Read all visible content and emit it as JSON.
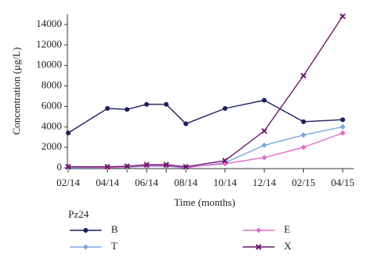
{
  "chart_data": {
    "type": "line",
    "x_label": "Time (months)",
    "y_label": "Concentration (μg/L)",
    "categories": [
      "02/14",
      "04/14",
      null,
      "06/14",
      null,
      "08/14",
      "10/14",
      "12/14",
      "02/15",
      "04/15"
    ],
    "series": [
      {
        "name": "B",
        "color": "#1c1f5c",
        "marker": "circle",
        "values": [
          3400,
          5800,
          5700,
          6200,
          6200,
          4300,
          5800,
          6600,
          4500,
          4700
        ]
      },
      {
        "name": "T",
        "color": "#7ba7e0",
        "marker": "diamond",
        "values": [
          0,
          0,
          50,
          150,
          150,
          0,
          500,
          2200,
          3200,
          4000
        ]
      },
      {
        "name": "E",
        "color": "#e06ec6",
        "marker": "diamond",
        "values": [
          100,
          0,
          100,
          200,
          200,
          50,
          400,
          1000,
          2000,
          3400
        ]
      },
      {
        "name": "X",
        "color": "#6b1a6b",
        "marker": "x",
        "values": [
          100,
          100,
          150,
          300,
          300,
          100,
          700,
          3600,
          9000,
          14800
        ]
      }
    ],
    "legend_title": "Pz24",
    "ylim": [
      0,
      15000
    ],
    "yticks": [
      0,
      2000,
      4000,
      6000,
      8000,
      10000,
      12000,
      14000
    ]
  }
}
